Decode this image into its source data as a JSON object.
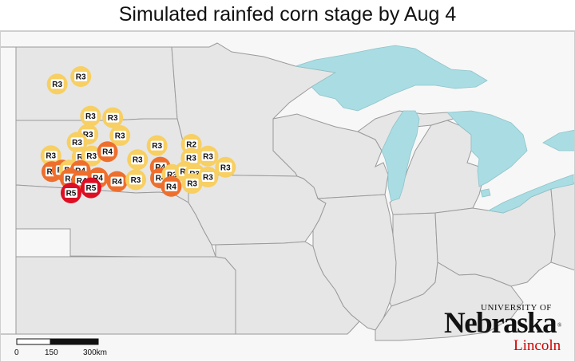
{
  "title": "Simulated rainfed corn stage by Aug 4",
  "colors": {
    "R2": "#f7cf62",
    "R3": "#f7cf62",
    "R4": "#ee6f2d",
    "R5": "#dd0f24",
    "water": "#a9dde3",
    "land": "#e6e6e6",
    "land_outside": "#f7f7f7",
    "border": "#9a9a9a"
  },
  "sites": [
    {
      "stage": "R3",
      "lon": -100.5,
      "lat": 47.48
    },
    {
      "stage": "R3",
      "lon": -97.74,
      "lat": 47.95
    },
    {
      "stage": "R3",
      "lon": -96.6,
      "lat": 45.47
    },
    {
      "stage": "R3",
      "lon": -94.0,
      "lat": 45.37
    },
    {
      "stage": "R3",
      "lon": -96.9,
      "lat": 44.33
    },
    {
      "stage": "R3",
      "lon": -93.16,
      "lat": 44.25
    },
    {
      "stage": "R3",
      "lon": -98.17,
      "lat": 43.83
    },
    {
      "stage": "R3",
      "lon": -101.24,
      "lat": 42.99
    },
    {
      "stage": "R3",
      "lon": -97.58,
      "lat": 42.92
    },
    {
      "stage": "R3",
      "lon": -96.48,
      "lat": 42.97
    },
    {
      "stage": "R4",
      "lon": -94.62,
      "lat": 43.24
    },
    {
      "stage": "R3",
      "lon": -91.1,
      "lat": 42.74
    },
    {
      "stage": "R3",
      "lon": -88.82,
      "lat": 43.62
    },
    {
      "stage": "R2",
      "lon": -84.8,
      "lat": 43.7
    },
    {
      "stage": "R3",
      "lon": -82.85,
      "lat": 42.96
    },
    {
      "stage": "R3",
      "lon": -84.82,
      "lat": 42.84
    },
    {
      "stage": "R3",
      "lon": -80.81,
      "lat": 42.26
    },
    {
      "stage": "R4",
      "lon": -101.13,
      "lat": 41.99
    },
    {
      "stage": "R4",
      "lon": -99.92,
      "lat": 42.09
    },
    {
      "stage": "R3",
      "lon": -99.09,
      "lat": 42.09
    },
    {
      "stage": "R4",
      "lon": -97.8,
      "lat": 42.06
    },
    {
      "stage": "R4",
      "lon": -98.99,
      "lat": 41.56
    },
    {
      "stage": "R4",
      "lon": -97.65,
      "lat": 41.43
    },
    {
      "stage": "R4",
      "lon": -95.74,
      "lat": 41.6
    },
    {
      "stage": "R4",
      "lon": -93.5,
      "lat": 41.37
    },
    {
      "stage": "R3",
      "lon": -91.31,
      "lat": 41.48
    },
    {
      "stage": "R4",
      "lon": -88.44,
      "lat": 42.27
    },
    {
      "stage": "R4",
      "lon": -88.41,
      "lat": 41.59
    },
    {
      "stage": "R3",
      "lon": -87.07,
      "lat": 41.81
    },
    {
      "stage": "R3",
      "lon": -85.53,
      "lat": 42.0
    },
    {
      "stage": "R3",
      "lon": -84.43,
      "lat": 41.85
    },
    {
      "stage": "R3",
      "lon": -82.86,
      "lat": 41.65
    },
    {
      "stage": "R3",
      "lon": -84.71,
      "lat": 41.25
    },
    {
      "stage": "R4",
      "lon": -87.16,
      "lat": 41.06
    },
    {
      "stage": "R5",
      "lon": -96.55,
      "lat": 40.97
    },
    {
      "stage": "R5",
      "lon": -98.88,
      "lat": 40.65
    }
  ],
  "scale_bar": {
    "labels": [
      "0",
      "150",
      "300km"
    ]
  },
  "logo": {
    "top": "UNIVERSITY OF",
    "name": "Nebraska",
    "sub": "Lincoln",
    "reg": "®"
  }
}
